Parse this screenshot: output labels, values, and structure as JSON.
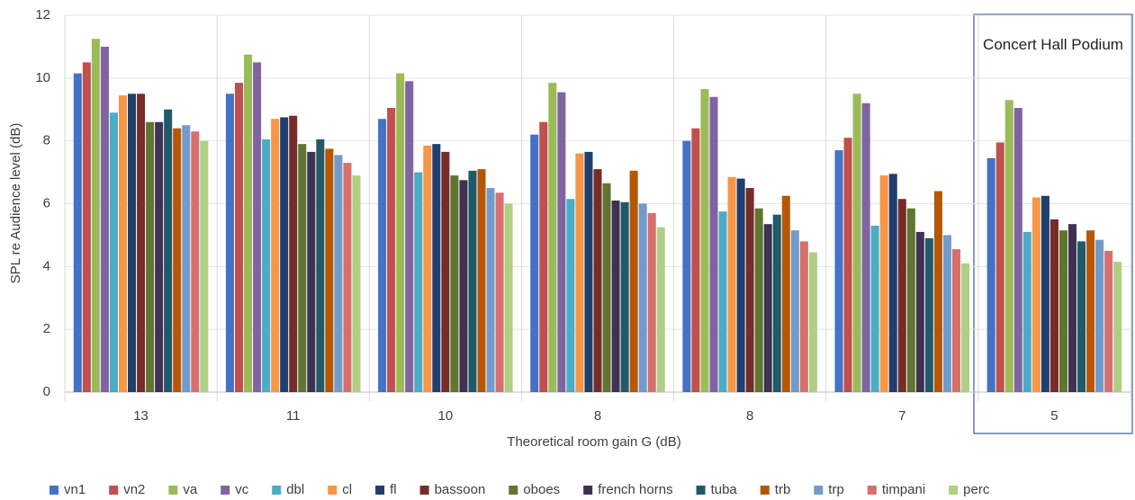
{
  "chart_data": {
    "type": "bar",
    "y_label": "SPL re Audience level (dB)",
    "x_label": "Theoretical room gain G (dB)",
    "annotation": "Concert Hall Podium",
    "categories": [
      "13",
      "11",
      "10",
      "8",
      "8",
      "7",
      "5"
    ],
    "ylim": [
      0,
      12
    ],
    "yticks": [
      0,
      2,
      4,
      6,
      8,
      10,
      12
    ],
    "grid": true,
    "series": [
      {
        "name": "vn1",
        "color": "#4472c4",
        "values": [
          10.15,
          9.5,
          8.7,
          8.2,
          8.0,
          7.7,
          7.45
        ]
      },
      {
        "name": "vn2",
        "color": "#c0504d",
        "values": [
          10.5,
          9.85,
          9.05,
          8.6,
          8.4,
          8.1,
          7.95
        ]
      },
      {
        "name": "va",
        "color": "#9bbb59",
        "values": [
          11.25,
          10.75,
          10.15,
          9.85,
          9.65,
          9.5,
          9.3
        ]
      },
      {
        "name": "vc",
        "color": "#8064a2",
        "values": [
          11.0,
          10.5,
          9.9,
          9.55,
          9.4,
          9.2,
          9.05
        ]
      },
      {
        "name": "dbl",
        "color": "#4bacc6",
        "values": [
          8.9,
          8.05,
          7.0,
          6.15,
          5.75,
          5.3,
          5.1
        ]
      },
      {
        "name": "cl",
        "color": "#f79646",
        "values": [
          9.45,
          8.7,
          7.85,
          7.6,
          6.85,
          6.9,
          6.2
        ]
      },
      {
        "name": "fl",
        "color": "#1f3f6e",
        "values": [
          9.5,
          8.75,
          7.9,
          7.65,
          6.8,
          6.95,
          6.25
        ]
      },
      {
        "name": "bassoon",
        "color": "#772c2a",
        "values": [
          9.5,
          8.8,
          7.65,
          7.1,
          6.5,
          6.15,
          5.5
        ]
      },
      {
        "name": "oboes",
        "color": "#5f7530",
        "values": [
          8.6,
          7.9,
          6.9,
          6.65,
          5.85,
          5.85,
          5.15
        ]
      },
      {
        "name": "french horns",
        "color": "#3f3151",
        "values": [
          8.6,
          7.65,
          6.75,
          6.1,
          5.35,
          5.1,
          5.35
        ]
      },
      {
        "name": "tuba",
        "color": "#215968",
        "values": [
          9.0,
          8.05,
          7.05,
          6.05,
          5.65,
          4.9,
          4.8
        ]
      },
      {
        "name": "trb",
        "color": "#b65708",
        "values": [
          8.4,
          7.75,
          7.1,
          7.05,
          6.25,
          6.4,
          5.15
        ]
      },
      {
        "name": "trp",
        "color": "#729aca",
        "values": [
          8.5,
          7.55,
          6.5,
          6.0,
          5.15,
          5.0,
          4.85
        ]
      },
      {
        "name": "timpani",
        "color": "#d6706d",
        "values": [
          8.3,
          7.3,
          6.35,
          5.7,
          4.8,
          4.55,
          4.5
        ]
      },
      {
        "name": "perc",
        "color": "#afcf84",
        "values": [
          8.0,
          6.9,
          6.0,
          5.25,
          4.45,
          4.1,
          4.15
        ]
      }
    ]
  }
}
